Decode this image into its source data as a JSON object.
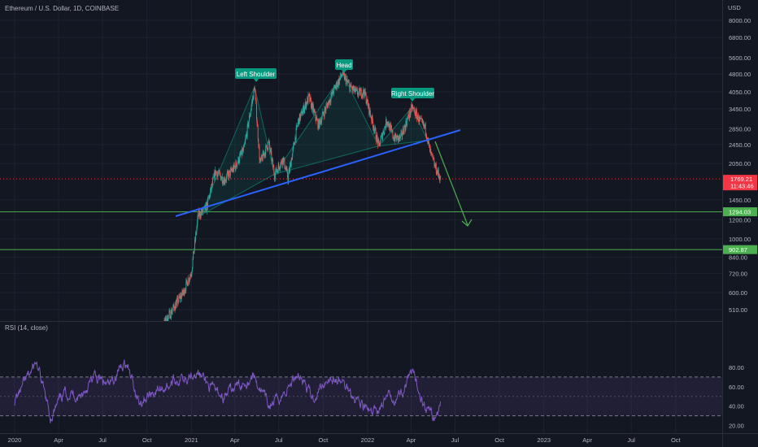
{
  "header": {
    "symbol_title": "Ethereum / U.S. Dollar, 1D, COINBASE"
  },
  "price_axis": {
    "currency": "USD",
    "ticks": [
      "8000.00",
      "6800.00",
      "5600.00",
      "4800.00",
      "4050.00",
      "3450.00",
      "2850.00",
      "2450.00",
      "2050.00",
      "1450.00",
      "1200.00",
      "1000.00",
      "840.00",
      "720.00",
      "600.00",
      "510.00"
    ]
  },
  "last_price": {
    "value": "1769.21",
    "countdown": "11:43:46",
    "color": "#f23645"
  },
  "levels": [
    {
      "label": "1294.03",
      "price": 1294.03,
      "color": "#4caf50"
    },
    {
      "label": "902.87",
      "price": 902.87,
      "color": "#4caf50"
    }
  ],
  "annotations": {
    "left_shoulder": "Left Shoulder",
    "head": "Head",
    "right_shoulder": "Right Shoulder",
    "label_color": "#089981"
  },
  "rsi": {
    "title": "RSI (14, close)",
    "ticks": [
      "80.00",
      "60.00",
      "40.00",
      "20.00"
    ],
    "upper_band": 70,
    "lower_band": 30,
    "line_color": "#7e57c2"
  },
  "time_axis": {
    "labels": [
      "2020",
      "Apr",
      "Jul",
      "Oct",
      "2021",
      "Apr",
      "Jul",
      "Oct",
      "2022",
      "Apr",
      "Jul",
      "Oct",
      "2023",
      "Apr",
      "Jul",
      "Oct"
    ]
  },
  "chart_data": {
    "type": "line",
    "title": "Ethereum / U.S. Dollar, 1D, COINBASE",
    "y_scale": "log",
    "ylim": [
      460,
      9000
    ],
    "series": [
      {
        "name": "ETH/USD",
        "x": [
          "2020-10-15",
          "2020-11-15",
          "2020-12-15",
          "2021-01-01",
          "2021-01-15",
          "2021-02-01",
          "2021-02-20",
          "2021-03-10",
          "2021-04-01",
          "2021-04-20",
          "2021-05-12",
          "2021-05-23",
          "2021-06-10",
          "2021-06-22",
          "2021-07-10",
          "2021-07-20",
          "2021-08-10",
          "2021-09-01",
          "2021-09-21",
          "2021-10-10",
          "2021-10-25",
          "2021-11-10",
          "2021-11-25",
          "2021-12-10",
          "2021-12-25",
          "2022-01-10",
          "2022-01-24",
          "2022-02-10",
          "2022-02-24",
          "2022-03-10",
          "2022-03-20",
          "2022-04-03",
          "2022-04-20",
          "2022-05-01",
          "2022-05-10",
          "2022-05-20",
          "2022-06-01"
        ],
        "values": [
          380,
          480,
          600,
          730,
          1250,
          1340,
          1900,
          1750,
          1980,
          2350,
          4250,
          2050,
          2500,
          1850,
          2150,
          1780,
          3050,
          3850,
          2950,
          3600,
          4200,
          4800,
          4250,
          4000,
          4050,
          3100,
          2420,
          3100,
          2620,
          2600,
          2950,
          3500,
          3050,
          2850,
          2300,
          2000,
          1769
        ]
      },
      {
        "name": "RSI (14, close)",
        "x": [
          "2020-01-01",
          "2020-02-15",
          "2020-03-15",
          "2020-04-15",
          "2020-05-15",
          "2020-06-15",
          "2020-07-15",
          "2020-08-15",
          "2020-09-15",
          "2020-10-15",
          "2020-11-15",
          "2020-12-15",
          "2021-01-10",
          "2021-02-10",
          "2021-03-10",
          "2021-04-10",
          "2021-05-10",
          "2021-06-10",
          "2021-07-10",
          "2021-08-10",
          "2021-09-10",
          "2021-10-10",
          "2021-11-10",
          "2021-12-10",
          "2022-01-10",
          "2022-02-10",
          "2022-03-10",
          "2022-04-03",
          "2022-05-01",
          "2022-05-20",
          "2022-06-01"
        ],
        "values": [
          45,
          85,
          28,
          55,
          50,
          70,
          60,
          88,
          45,
          55,
          62,
          70,
          78,
          58,
          50,
          62,
          72,
          40,
          52,
          75,
          48,
          70,
          64,
          48,
          30,
          48,
          52,
          73,
          40,
          28,
          40
        ]
      }
    ],
    "levels": [
      1294.03,
      902.87
    ],
    "last_price": 1769.21,
    "grid": true
  }
}
